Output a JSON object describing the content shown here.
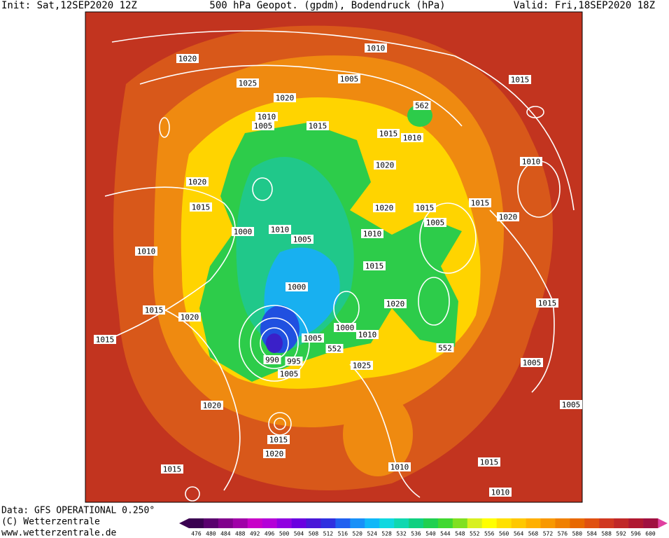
{
  "header": {
    "init": "Init: Sat,12SEP2020 12Z",
    "title": "500 hPa Geopot. (gpdm), Bodendruck (hPa)",
    "valid": "Valid: Fri,18SEP2020 18Z"
  },
  "map": {
    "isobar_labels": [
      "1010",
      "1020",
      "1005",
      "1025",
      "1020",
      "1015",
      "1010",
      "1005",
      "1015",
      "562",
      "1015",
      "1010",
      "1010",
      "1020",
      "1020",
      "1015",
      "1020",
      "1015",
      "1015",
      "1020",
      "1005",
      "1000",
      "1010",
      "1005",
      "1010",
      "1010",
      "1015",
      "1000",
      "1020",
      "1015",
      "1015",
      "1020",
      "1000",
      "1010",
      "1015",
      "1005",
      "552",
      "552",
      "990",
      "995",
      "1025",
      "1005",
      "1005",
      "1020",
      "1005",
      "1015",
      "1020",
      "1015",
      "1010",
      "1015",
      "1010"
    ]
  },
  "footer": {
    "data": "Data: GFS OPERATIONAL 0.250°",
    "copyright": "(C) Wetterzentrale",
    "url": "www.wetterzentrale.de"
  },
  "colorbar": {
    "labels": [
      476,
      480,
      484,
      488,
      492,
      496,
      500,
      504,
      508,
      512,
      516,
      520,
      524,
      528,
      532,
      536,
      540,
      544,
      548,
      552,
      556,
      560,
      564,
      568,
      572,
      576,
      580,
      584,
      588,
      592,
      596,
      600
    ],
    "colors": [
      "#3a0050",
      "#5a006e",
      "#80008c",
      "#a000a8",
      "#c800c8",
      "#b400d8",
      "#9000e0",
      "#6a00e0",
      "#4a18d8",
      "#3030e0",
      "#2060f0",
      "#1890f8",
      "#10b8f8",
      "#10d8e0",
      "#10d8b0",
      "#10d080",
      "#20d050",
      "#40d830",
      "#80e020",
      "#d8f020",
      "#ffff00",
      "#ffe000",
      "#ffc800",
      "#ffb000",
      "#f89800",
      "#f08000",
      "#e86800",
      "#e05010",
      "#d03820",
      "#c02828",
      "#b01830",
      "#a01040"
    ]
  }
}
